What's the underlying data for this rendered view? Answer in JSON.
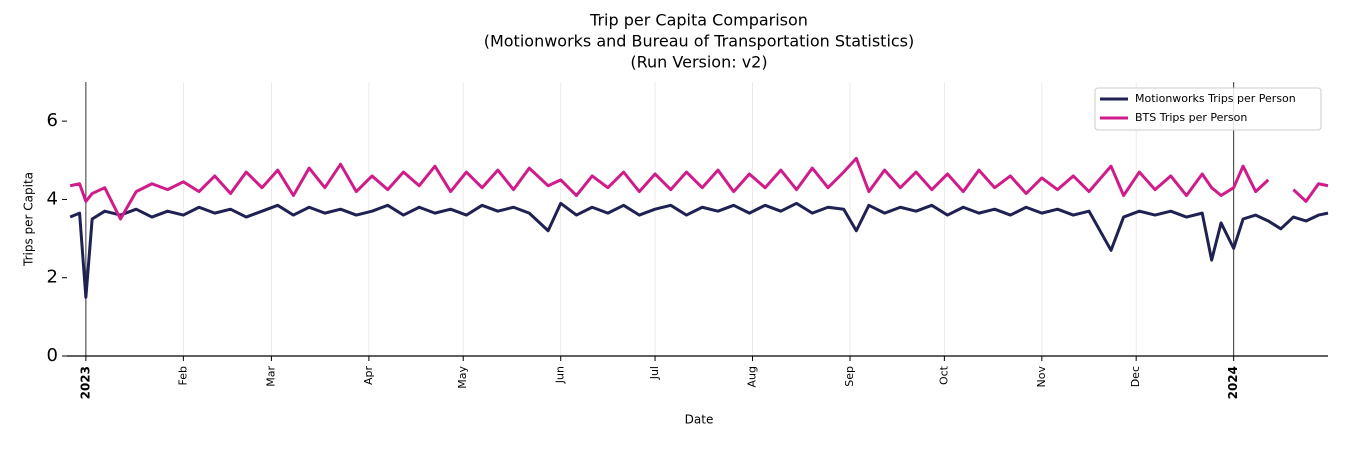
{
  "chart_data": {
    "type": "line",
    "title": [
      "Trip per Capita Comparison",
      "(Motionworks and Bureau of Transportation Statistics)",
      "(Run Version: v2)"
    ],
    "x_label": "Date",
    "y_label": "Trips per Capita",
    "x": [
      "2022-12-27",
      "2022-12-30",
      "2023-01-01",
      "2023-01-03",
      "2023-01-07",
      "2023-01-12",
      "2023-01-17",
      "2023-01-22",
      "2023-01-27",
      "2023-02-01",
      "2023-02-06",
      "2023-02-11",
      "2023-02-16",
      "2023-02-21",
      "2023-02-26",
      "2023-03-03",
      "2023-03-08",
      "2023-03-13",
      "2023-03-18",
      "2023-03-23",
      "2023-03-28",
      "2023-04-02",
      "2023-04-07",
      "2023-04-12",
      "2023-04-17",
      "2023-04-22",
      "2023-04-27",
      "2023-05-02",
      "2023-05-07",
      "2023-05-12",
      "2023-05-17",
      "2023-05-22",
      "2023-05-28",
      "2023-06-01",
      "2023-06-06",
      "2023-06-11",
      "2023-06-16",
      "2023-06-21",
      "2023-06-26",
      "2023-07-01",
      "2023-07-06",
      "2023-07-11",
      "2023-07-16",
      "2023-07-21",
      "2023-07-26",
      "2023-07-31",
      "2023-08-05",
      "2023-08-10",
      "2023-08-15",
      "2023-08-20",
      "2023-08-25",
      "2023-08-30",
      "2023-09-03",
      "2023-09-07",
      "2023-09-12",
      "2023-09-17",
      "2023-09-22",
      "2023-09-27",
      "2023-10-02",
      "2023-10-07",
      "2023-10-12",
      "2023-10-17",
      "2023-10-22",
      "2023-10-27",
      "2023-11-01",
      "2023-11-06",
      "2023-11-11",
      "2023-11-16",
      "2023-11-23",
      "2023-11-27",
      "2023-12-02",
      "2023-12-07",
      "2023-12-12",
      "2023-12-17",
      "2023-12-22",
      "2023-12-25",
      "2023-12-28",
      "2024-01-01",
      "2024-01-04",
      "2024-01-08",
      "2024-01-12",
      "2024-01-16",
      "2024-01-20",
      "2024-01-24",
      "2024-01-28",
      "2024-01-31"
    ],
    "series": [
      {
        "name": "Motionworks Trips per Person",
        "color": "#1f2152",
        "values": [
          3.55,
          3.65,
          1.5,
          3.5,
          3.7,
          3.6,
          3.75,
          3.55,
          3.7,
          3.6,
          3.8,
          3.65,
          3.75,
          3.55,
          3.7,
          3.85,
          3.6,
          3.8,
          3.65,
          3.75,
          3.6,
          3.7,
          3.85,
          3.6,
          3.8,
          3.65,
          3.75,
          3.6,
          3.85,
          3.7,
          3.8,
          3.65,
          3.2,
          3.9,
          3.6,
          3.8,
          3.65,
          3.85,
          3.6,
          3.75,
          3.85,
          3.6,
          3.8,
          3.7,
          3.85,
          3.65,
          3.85,
          3.7,
          3.9,
          3.65,
          3.8,
          3.75,
          3.2,
          3.85,
          3.65,
          3.8,
          3.7,
          3.85,
          3.6,
          3.8,
          3.65,
          3.75,
          3.6,
          3.8,
          3.65,
          3.75,
          3.6,
          3.7,
          2.7,
          3.55,
          3.7,
          3.6,
          3.7,
          3.55,
          3.65,
          2.45,
          3.4,
          2.75,
          3.5,
          3.6,
          3.45,
          3.25,
          3.55,
          3.45,
          3.6,
          3.65
        ]
      },
      {
        "name": "BTS Trips per Person",
        "color": "#d01c8b",
        "values": [
          4.35,
          4.4,
          3.95,
          4.15,
          4.3,
          3.5,
          4.2,
          4.4,
          4.25,
          4.45,
          4.2,
          4.6,
          4.15,
          4.7,
          4.3,
          4.75,
          4.1,
          4.8,
          4.3,
          4.9,
          4.2,
          4.6,
          4.25,
          4.7,
          4.35,
          4.85,
          4.2,
          4.7,
          4.3,
          4.75,
          4.25,
          4.8,
          4.35,
          4.5,
          4.1,
          4.6,
          4.3,
          4.7,
          4.2,
          4.65,
          4.25,
          4.7,
          4.3,
          4.75,
          4.2,
          4.65,
          4.3,
          4.75,
          4.25,
          4.8,
          4.3,
          4.7,
          5.05,
          4.2,
          4.75,
          4.3,
          4.7,
          4.25,
          4.65,
          4.2,
          4.75,
          4.3,
          4.6,
          4.15,
          4.55,
          4.25,
          4.6,
          4.2,
          4.85,
          4.1,
          4.7,
          4.25,
          4.6,
          4.1,
          4.65,
          4.3,
          4.1,
          4.3,
          4.85,
          4.2,
          4.5,
          null,
          4.25,
          3.95,
          4.4,
          4.35
        ]
      }
    ],
    "xlim": [
      "2022-12-26",
      "2024-01-31"
    ],
    "xticks": [
      {
        "value": "2023-01-01",
        "label": "2023"
      },
      {
        "value": "2023-02-01",
        "label": "Feb"
      },
      {
        "value": "2023-03-01",
        "label": "Mar"
      },
      {
        "value": "2023-04-01",
        "label": "Apr"
      },
      {
        "value": "2023-05-01",
        "label": "May"
      },
      {
        "value": "2023-06-01",
        "label": "Jun"
      },
      {
        "value": "2023-07-01",
        "label": "Jul"
      },
      {
        "value": "2023-08-01",
        "label": "Aug"
      },
      {
        "value": "2023-09-01",
        "label": "Sep"
      },
      {
        "value": "2023-10-01",
        "label": "Oct"
      },
      {
        "value": "2023-11-01",
        "label": "Nov"
      },
      {
        "value": "2023-12-01",
        "label": "Dec"
      },
      {
        "value": "2024-01-01",
        "label": "2024"
      }
    ],
    "ylim": [
      0,
      7
    ],
    "yticks": [
      0,
      2,
      4,
      6
    ],
    "grid": true,
    "legend": "upper right"
  }
}
